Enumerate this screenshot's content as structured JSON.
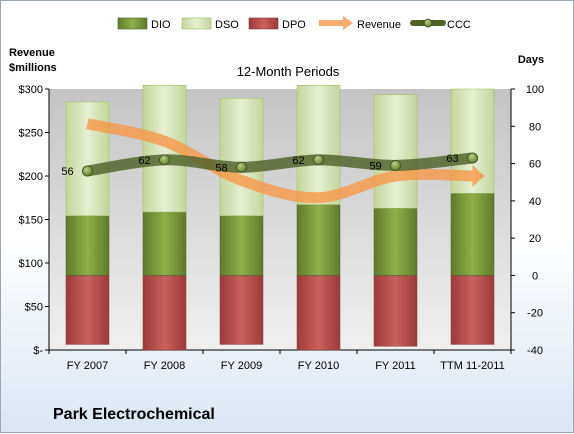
{
  "company": "Park Electrochemical",
  "chart_data": {
    "type": "bar",
    "title": "12-Month Periods",
    "categories": [
      "FY 2007",
      "FY 2008",
      "FY 2009",
      "FY 2010",
      "FY 2011",
      "TTM 11-2011"
    ],
    "left_axis": {
      "label_line1": "Revenue",
      "label_line2": "$millions",
      "ticks": [
        "$-",
        "$50",
        "$100",
        "$150",
        "$200",
        "$250",
        "$300"
      ],
      "range": [
        0,
        300
      ]
    },
    "right_axis": {
      "label": "Days",
      "ticks": [
        "-40",
        "-20",
        "0",
        "20",
        "40",
        "60",
        "80",
        "100"
      ],
      "range": [
        -40,
        100
      ]
    },
    "series": [
      {
        "name": "DIO",
        "type": "stacked-bar",
        "axis": "days",
        "color": "#77933c",
        "values": [
          32,
          34,
          32,
          38,
          36,
          44
        ]
      },
      {
        "name": "DSO",
        "type": "stacked-bar",
        "axis": "days",
        "color": "#d7e4bd",
        "values": [
          61,
          68,
          63,
          64,
          61,
          56
        ]
      },
      {
        "name": "DPO",
        "type": "negative-bar",
        "axis": "days",
        "color": "#c0504d",
        "values": [
          37,
          40,
          37,
          40,
          38,
          37
        ]
      },
      {
        "name": "Revenue",
        "type": "line",
        "axis": "revenue",
        "color": "#f79646",
        "values": [
          260,
          240,
          195,
          175,
          200,
          200
        ]
      },
      {
        "name": "CCC",
        "type": "line",
        "axis": "days",
        "color": "#4f6228",
        "values": [
          56,
          62,
          58,
          62,
          59,
          63
        ]
      }
    ],
    "ccc_labels": [
      "56",
      "62",
      "58",
      "62",
      "59",
      "63"
    ],
    "legend": [
      "DIO",
      "DSO",
      "DPO",
      "Revenue",
      "CCC"
    ],
    "legend_position": "top",
    "grid": false
  }
}
